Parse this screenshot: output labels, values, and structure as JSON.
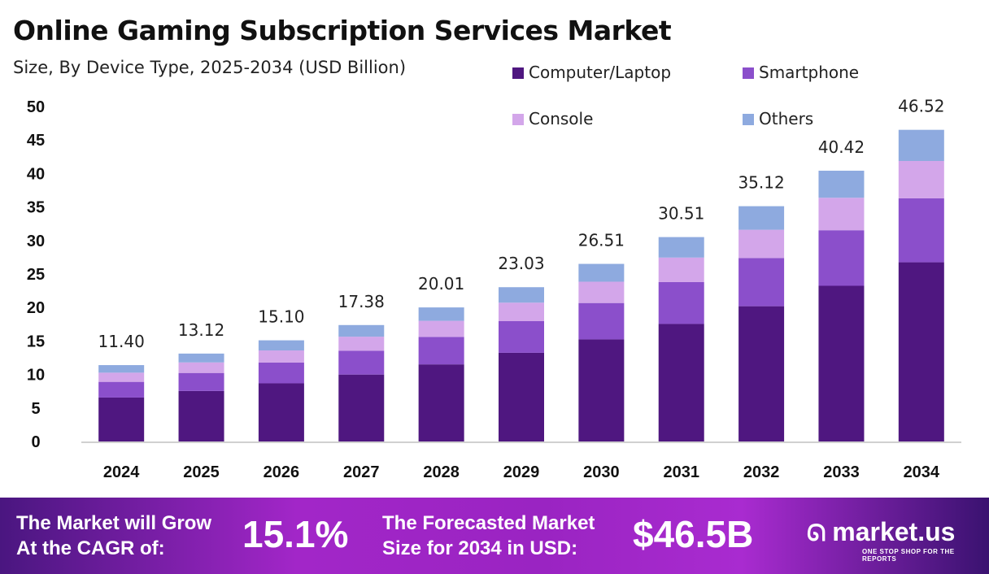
{
  "chart_data": {
    "type": "bar",
    "stacked": true,
    "title": "Online Gaming Subscription Services Market",
    "subtitle": "Size, By Device Type, 2025-2034 (USD Billion)",
    "categories": [
      "2024",
      "2025",
      "2026",
      "2027",
      "2028",
      "2029",
      "2030",
      "2031",
      "2032",
      "2033",
      "2034"
    ],
    "series": [
      {
        "name": "Computer/Laptop",
        "color": "#4f1780",
        "values": [
          6.56,
          7.54,
          8.68,
          9.99,
          11.51,
          13.24,
          15.24,
          17.54,
          20.19,
          23.24,
          26.75
        ]
      },
      {
        "name": "Smartphone",
        "color": "#8b4fcb",
        "values": [
          2.34,
          2.69,
          3.1,
          3.56,
          4.1,
          4.72,
          5.43,
          6.25,
          7.2,
          8.29,
          9.54
        ]
      },
      {
        "name": "Console",
        "color": "#d3a6ea",
        "values": [
          1.37,
          1.57,
          1.81,
          2.09,
          2.4,
          2.76,
          3.18,
          3.66,
          4.21,
          4.85,
          5.58
        ]
      },
      {
        "name": "Others",
        "color": "#8eaadf",
        "values": [
          1.13,
          1.32,
          1.51,
          1.74,
          2.0,
          2.31,
          2.66,
          3.06,
          3.52,
          4.04,
          4.65
        ]
      }
    ],
    "totals": [
      "11.40",
      "13.12",
      "15.10",
      "17.38",
      "20.01",
      "23.03",
      "26.51",
      "30.51",
      "35.12",
      "40.42",
      "46.52"
    ],
    "ylim": [
      0,
      50
    ],
    "yticks": [
      "0",
      "5",
      "10",
      "15",
      "20",
      "25",
      "30",
      "35",
      "40",
      "45",
      "50"
    ],
    "grid": false,
    "legend_position": "top-right"
  },
  "footer": {
    "cagr_label_1": "The Market will Grow",
    "cagr_label_2": "At the CAGR of:",
    "cagr_value": "15.1%",
    "forecast_label_1": "The Forecasted Market",
    "forecast_label_2": "Size for 2034 in USD:",
    "forecast_value": "$46.5B",
    "logo_text": "market.us",
    "logo_tagline": "ONE STOP SHOP FOR THE REPORTS"
  }
}
